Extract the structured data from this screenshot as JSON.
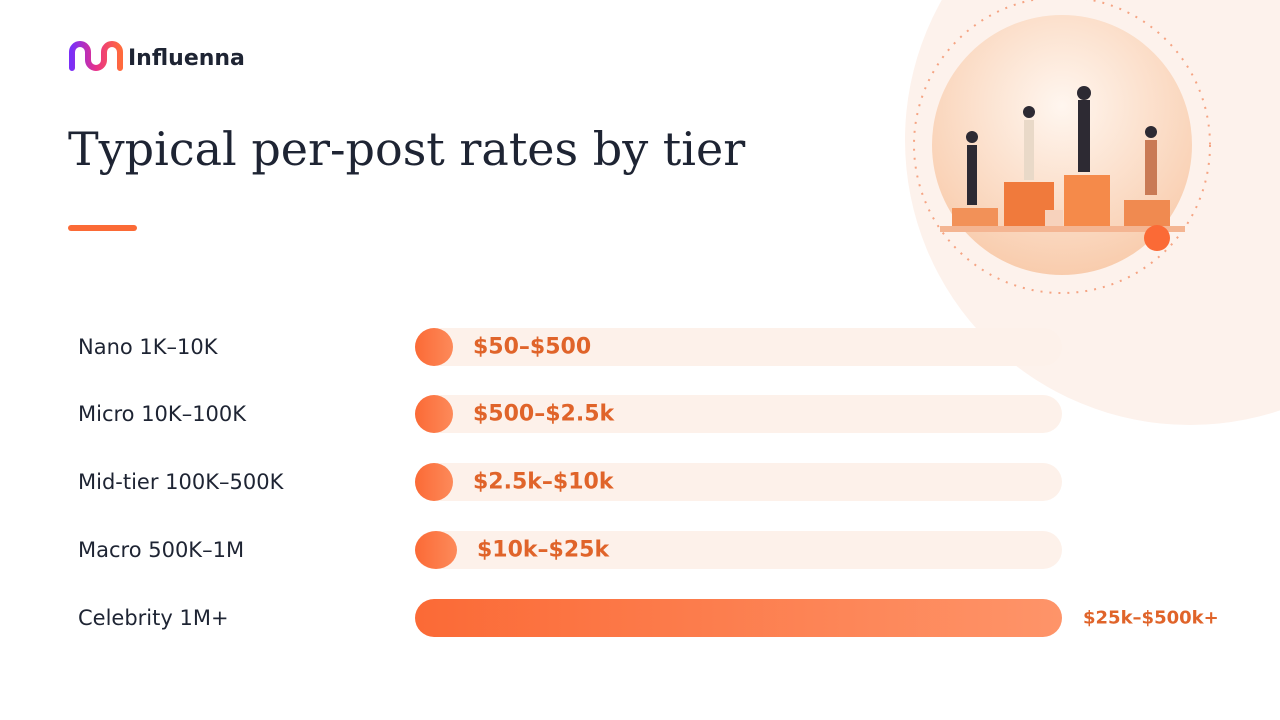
{
  "header": {
    "brand": "Influenna",
    "title": "Typical per-post rates by tier"
  },
  "rows": [
    {
      "tier": "Nano 1K–10K",
      "rate": "$50–$500"
    },
    {
      "tier": "Micro 10K–100K",
      "rate": "$500–$2.5k"
    },
    {
      "tier": "Mid-tier 100K–500K",
      "rate": "$2.5k–$10k"
    },
    {
      "tier": "Macro 500K–1M",
      "rate": "$10k–$25k"
    },
    {
      "tier": "Celebrity 1M+",
      "rate": "$25k–$500k+"
    }
  ]
}
